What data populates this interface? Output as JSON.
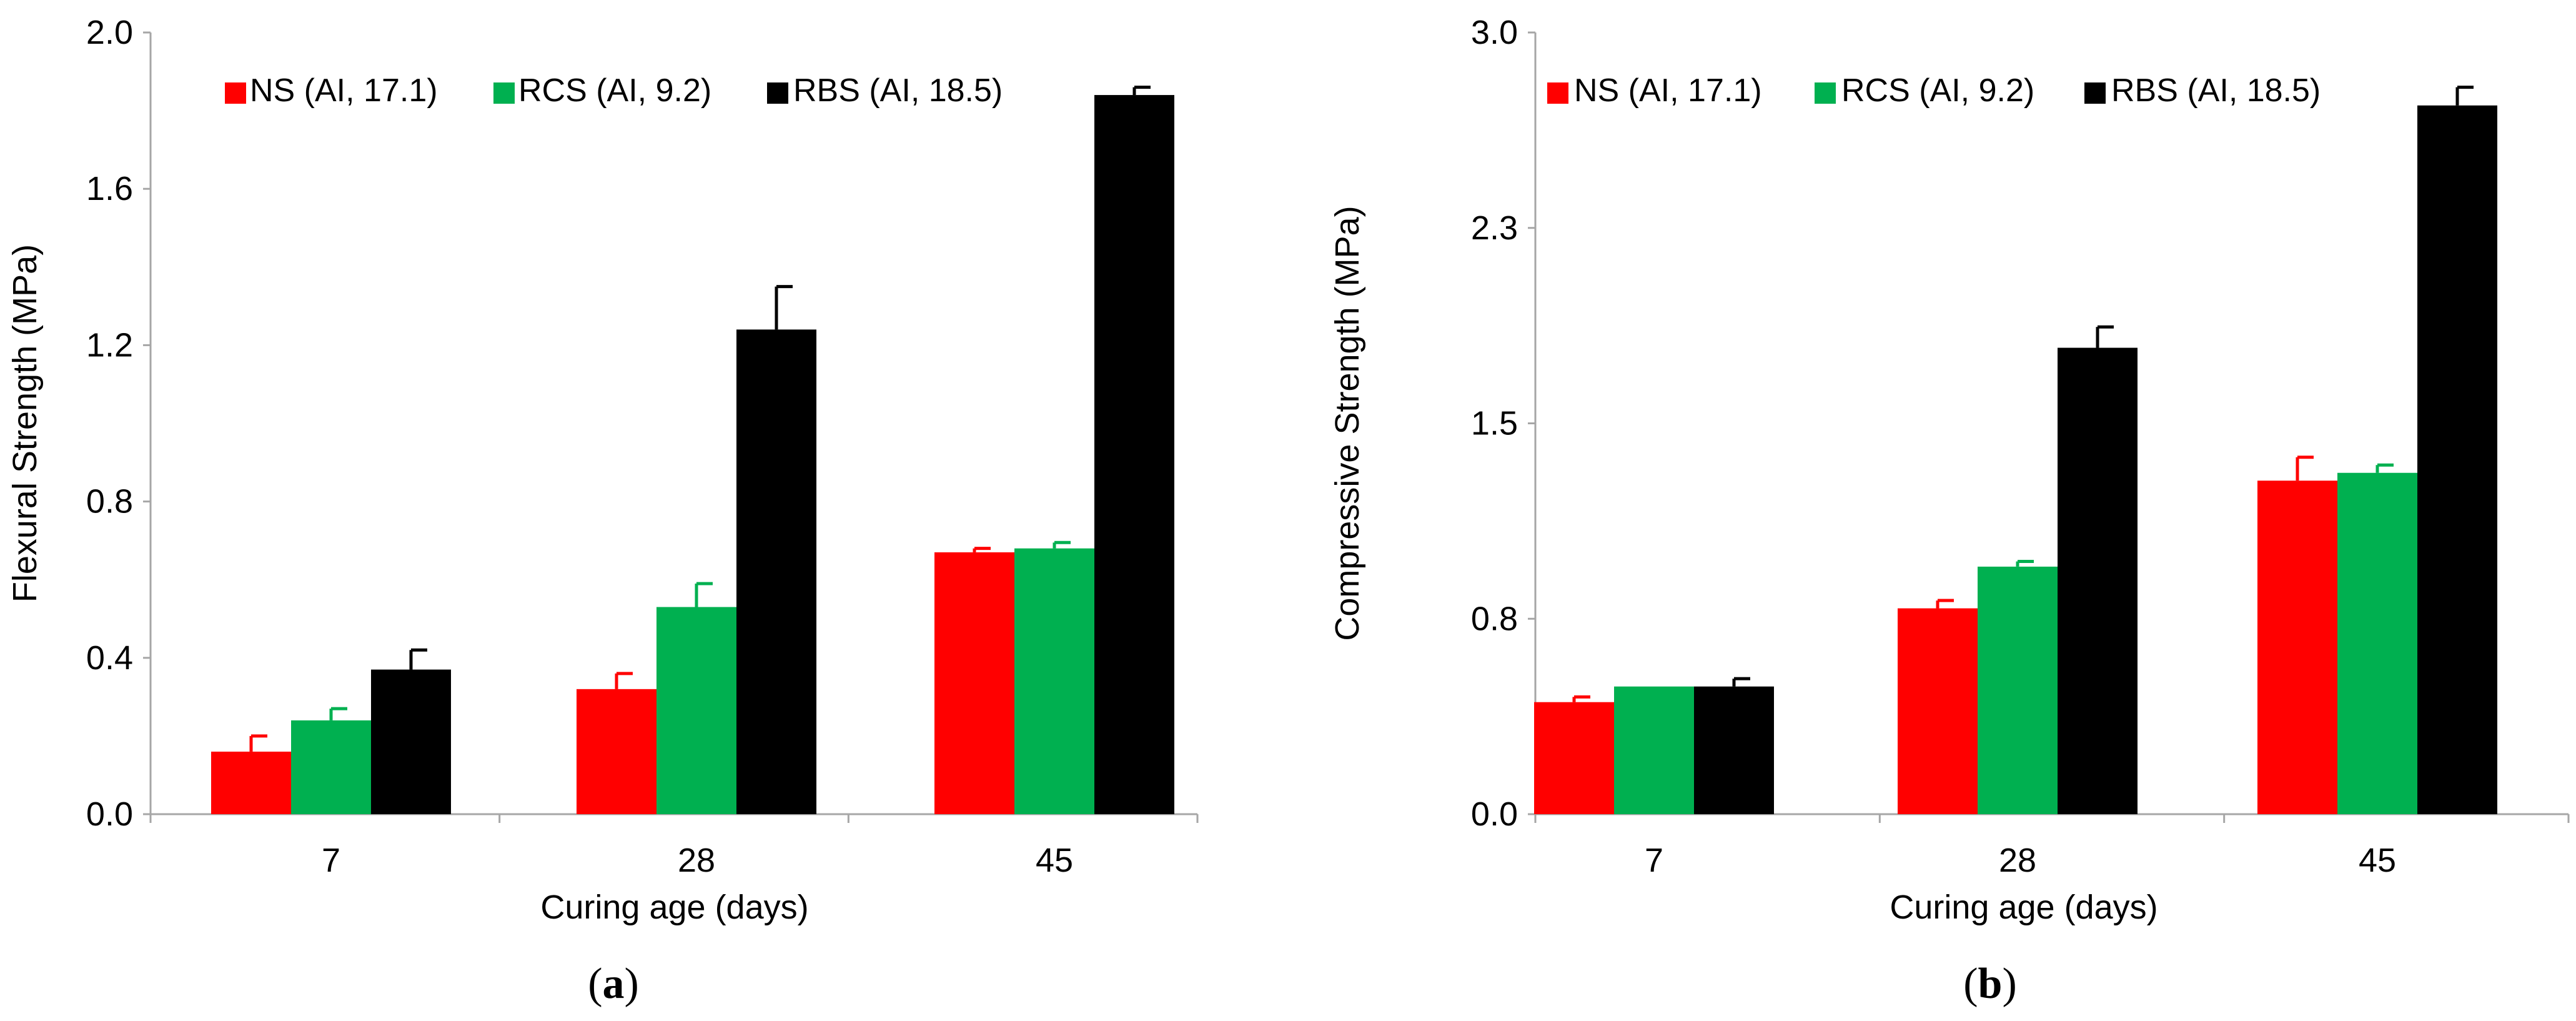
{
  "colors": {
    "NS": "#ff0000",
    "RCS": "#00b050",
    "RBS": "#000000"
  },
  "chart_data": [
    {
      "id": "a",
      "type": "bar",
      "caption_letter": "a",
      "caption_open": "(",
      "caption_close": ")",
      "title": "",
      "xlabel": "Curing age (days)",
      "ylabel": "Flexural Strength (MPa)",
      "categories": [
        "7",
        "28",
        "45"
      ],
      "ylim": [
        0,
        2.0
      ],
      "yticks": [
        "0.0",
        "0.4",
        "0.8",
        "1.2",
        "1.6",
        "2.0"
      ],
      "legend_position": "top",
      "series": [
        {
          "name": "NS (AI, 17.1)",
          "key": "NS",
          "values": [
            0.16,
            0.32,
            0.67
          ],
          "errors": [
            0.04,
            0.04,
            0.01
          ]
        },
        {
          "name": "RCS (AI, 9.2)",
          "key": "RCS",
          "values": [
            0.24,
            0.53,
            0.68
          ],
          "errors": [
            0.03,
            0.06,
            0.015
          ]
        },
        {
          "name": "RBS (AI, 18.5)",
          "key": "RBS",
          "values": [
            0.37,
            1.24,
            1.84
          ],
          "errors": [
            0.05,
            0.11,
            0.02
          ]
        }
      ]
    },
    {
      "id": "b",
      "type": "bar",
      "caption_letter": "b",
      "caption_open": "(",
      "caption_close": ")",
      "title": "",
      "xlabel": "Curing age (days)",
      "ylabel": "Compressive Strength (MPa)",
      "categories": [
        "7",
        "28",
        "45"
      ],
      "ylim": [
        0,
        3.0
      ],
      "yticks": [
        "0.0",
        "0.8",
        "1.5",
        "2.3",
        "3.0"
      ],
      "legend_position": "top",
      "series": [
        {
          "name": "NS (AI, 17.1)",
          "key": "NS",
          "values": [
            0.43,
            0.79,
            1.28
          ],
          "errors": [
            0.02,
            0.03,
            0.09
          ]
        },
        {
          "name": "RCS (AI, 9.2)",
          "key": "RCS",
          "values": [
            0.49,
            0.95,
            1.31
          ],
          "errors": [
            0.0,
            0.02,
            0.03
          ]
        },
        {
          "name": "RBS (AI, 18.5)",
          "key": "RBS",
          "values": [
            0.49,
            1.79,
            2.72
          ],
          "errors": [
            0.03,
            0.08,
            0.07
          ]
        }
      ]
    }
  ]
}
